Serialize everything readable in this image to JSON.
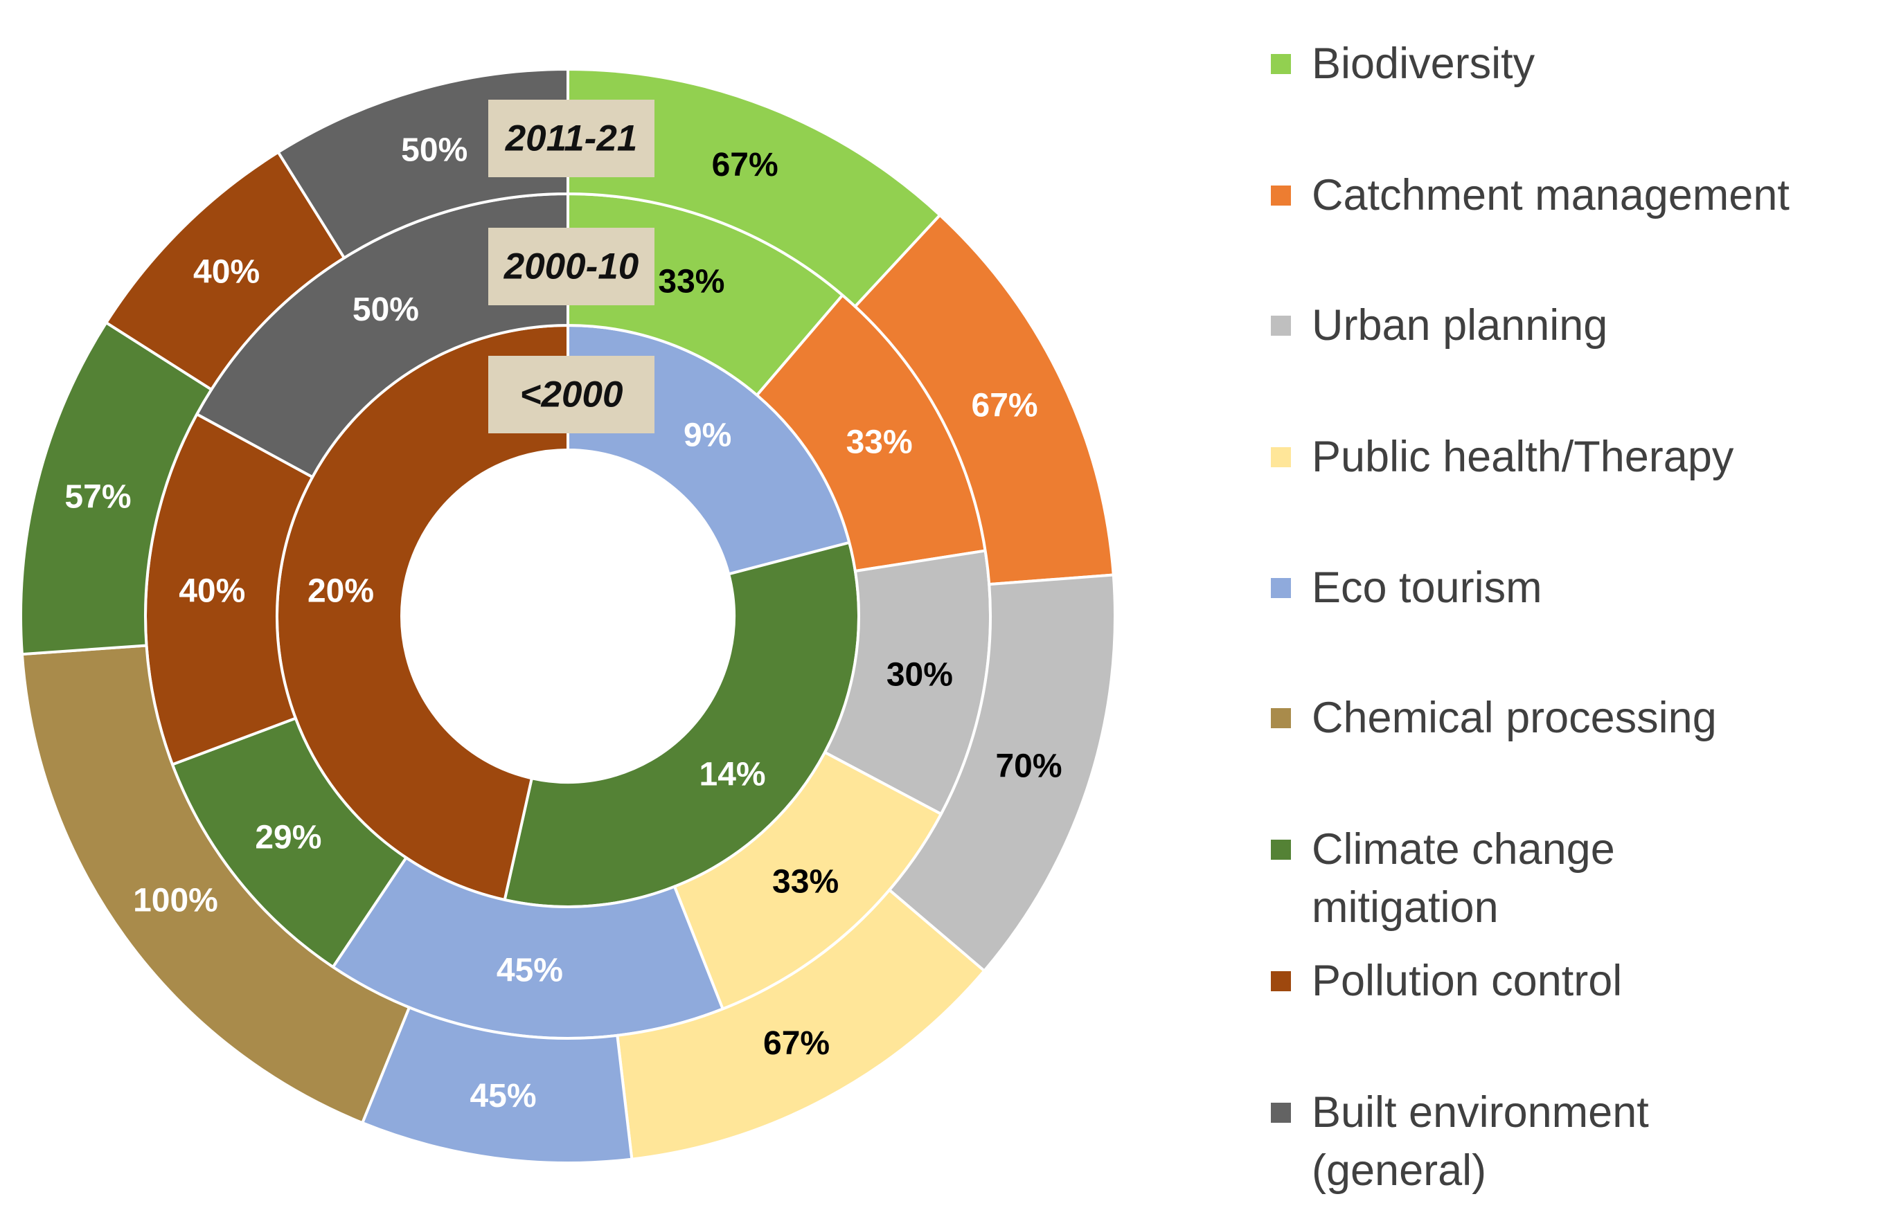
{
  "chart_data": {
    "type": "multi-ring donut",
    "rings": [
      {
        "period": "<2000",
        "segments": [
          {
            "category": "Eco tourism",
            "value": 9,
            "label": "9%"
          },
          {
            "category": "Climate change mitigation",
            "value": 14,
            "label": "14%"
          },
          {
            "category": "Pollution control",
            "value": 20,
            "label": "20%"
          }
        ]
      },
      {
        "period": "2000-10",
        "segments": [
          {
            "category": "Biodiversity",
            "value": 33,
            "label": "33%"
          },
          {
            "category": "Catchment management",
            "value": 33,
            "label": "33%"
          },
          {
            "category": "Urban planning",
            "value": 30,
            "label": "30%"
          },
          {
            "category": "Public health/Therapy",
            "value": 33,
            "label": "33%"
          },
          {
            "category": "Eco tourism",
            "value": 45,
            "label": "45%"
          },
          {
            "category": "Climate change mitigation",
            "value": 29,
            "label": "29%"
          },
          {
            "category": "Pollution control",
            "value": 40,
            "label": "40%"
          },
          {
            "category": "Built environment (general)",
            "value": 50,
            "label": "50%"
          }
        ]
      },
      {
        "period": "2011-21",
        "segments": [
          {
            "category": "Biodiversity",
            "value": 67,
            "label": "67%"
          },
          {
            "category": "Catchment management",
            "value": 67,
            "label": "67%"
          },
          {
            "category": "Urban planning",
            "value": 70,
            "label": "70%"
          },
          {
            "category": "Public health/Therapy",
            "value": 67,
            "label": "67%"
          },
          {
            "category": "Eco tourism",
            "value": 45,
            "label": "45%"
          },
          {
            "category": "Chemical processing",
            "value": 100,
            "label": "100%"
          },
          {
            "category": "Climate change mitigation",
            "value": 57,
            "label": "57%"
          },
          {
            "category": "Pollution control",
            "value": 40,
            "label": "40%"
          },
          {
            "category": "Built environment (general)",
            "value": 50,
            "label": "50%"
          }
        ]
      }
    ],
    "legend": [
      {
        "label": "Biodiversity",
        "color": "#92D050"
      },
      {
        "label": "Catchment management",
        "color": "#ED7D31"
      },
      {
        "label": "Urban planning",
        "color": "#BFBFBF"
      },
      {
        "label": "Public health/Therapy",
        "color": "#FFE699"
      },
      {
        "label": "Eco tourism",
        "color": "#8FAADC"
      },
      {
        "label": "Chemical processing",
        "color": "#A98B4B"
      },
      {
        "label": "Climate change mitigation",
        "color": "#548235"
      },
      {
        "label": "Pollution control",
        "color": "#9E480E"
      },
      {
        "label": "Built environment (general)",
        "color": "#636363"
      }
    ],
    "legend_position": "right",
    "label_text_colors": {
      "light": "#FFFFFF",
      "dark": "#000000"
    },
    "period_label_background": "#DDD3BB"
  }
}
